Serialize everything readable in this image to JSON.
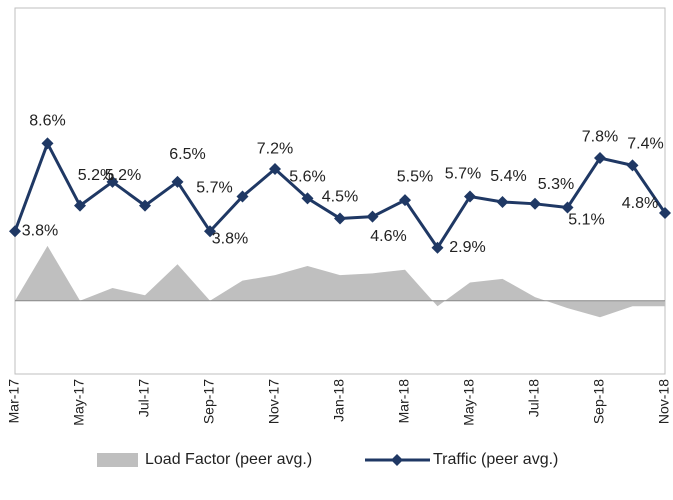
{
  "chart_data": {
    "type": "line",
    "categories": [
      "Mar-17",
      null,
      "May-17",
      null,
      "Jul-17",
      null,
      "Sep-17",
      null,
      "Nov-17",
      null,
      "Jan-18",
      null,
      "Mar-18",
      null,
      "May-18",
      null,
      "Jul-18",
      null,
      "Sep-18",
      null,
      "Nov-18"
    ],
    "series": [
      {
        "name": "Load Factor (peer avg.)",
        "type": "area",
        "color": "#bfbfbf",
        "values": [
          0,
          3.0,
          0,
          0.7,
          0.3,
          2.0,
          0,
          1.1,
          1.4,
          1.9,
          1.4,
          1.5,
          1.7,
          -0.3,
          1.0,
          1.2,
          0.2,
          -0.4,
          -0.9,
          -0.3,
          -0.3
        ]
      },
      {
        "name": "Traffic (peer avg.)",
        "type": "line",
        "color": "#1f3864",
        "values": [
          3.8,
          8.6,
          5.2,
          6.5,
          5.2,
          6.5,
          3.8,
          5.7,
          7.2,
          5.6,
          4.5,
          4.6,
          5.5,
          2.9,
          5.7,
          5.4,
          5.3,
          5.1,
          7.8,
          7.4,
          4.8
        ],
        "value_labels": [
          "3.8%",
          "8.6%",
          "5.2%",
          null,
          "5.2%",
          "6.5%",
          "3.8%",
          "5.7%",
          "7.2%",
          "5.6%",
          "4.5%",
          "4.6%",
          "5.5%",
          "2.9%",
          "5.7%",
          "5.4%",
          "5.3%",
          "5.1%",
          "7.8%",
          "7.4%",
          "4.8%"
        ]
      }
    ],
    "ylim": [
      -4,
      16
    ]
  }
}
